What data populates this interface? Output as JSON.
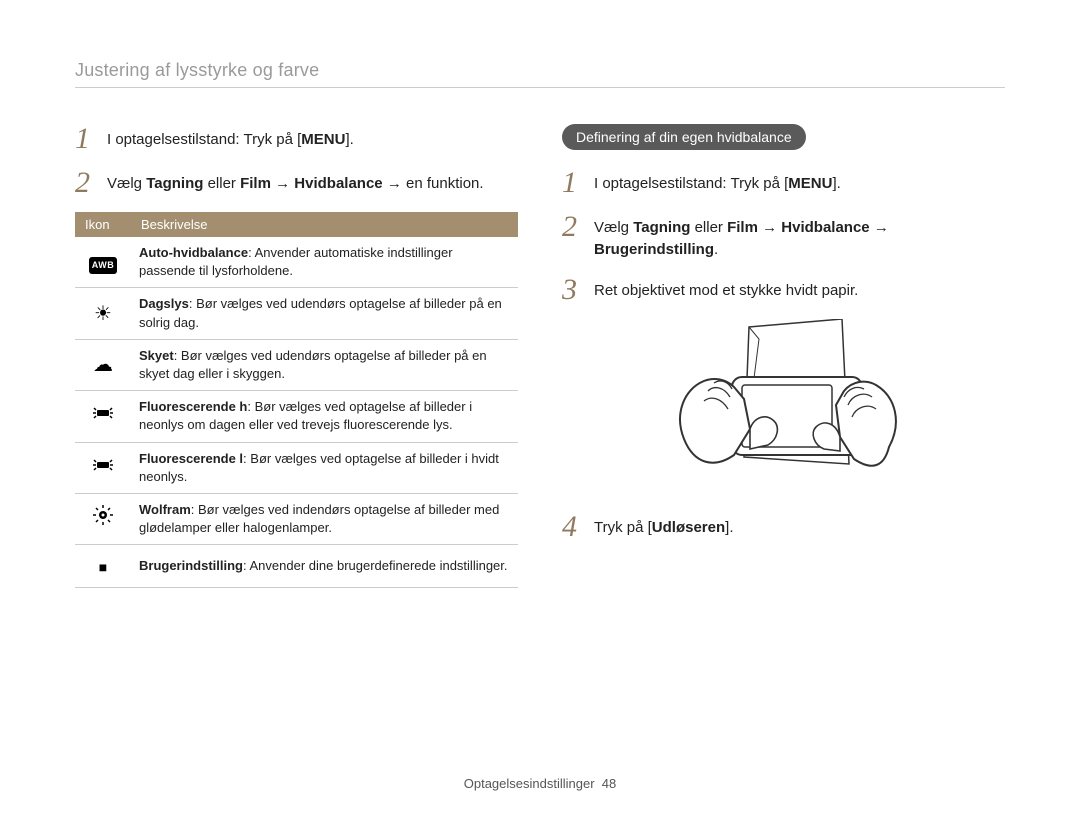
{
  "page": {
    "title": "Justering af lysstyrke og farve",
    "footer_label": "Optagelsesindstillinger",
    "footer_page": "48"
  },
  "colors": {
    "title_gray": "#9a9a9a",
    "step_number": "#8f7a5f",
    "table_header_bg": "#a38e70",
    "table_header_text": "#ffffff",
    "pill_bg": "#5a5a5a",
    "pill_text": "#ffffff",
    "border": "#cccccc",
    "body_text": "#222222",
    "background": "#ffffff"
  },
  "left": {
    "steps": [
      {
        "num": "1",
        "pre": "I optagelsestilstand: Tryk på [",
        "bold": "MENU",
        "post": "]."
      },
      {
        "num": "2",
        "pre": "Vælg ",
        "bold": "Tagning",
        "mid1": " eller ",
        "bold2": "Film",
        "mid2": " → ",
        "bold3": "Hvidbalance",
        "post": " → en funktion."
      }
    ],
    "table": {
      "headers": [
        "Ikon",
        "Beskrivelse"
      ],
      "rows": [
        {
          "icon": "AWB",
          "icon_type": "awb",
          "bold": "Auto-hvidbalance",
          "text": ": Anvender automatiske indstillinger passende til lysforholdene."
        },
        {
          "icon": "☀",
          "icon_type": "glyph",
          "bold": "Dagslys",
          "text": ": Bør vælges ved udendørs optagelse af billeder på en solrig dag."
        },
        {
          "icon": "☁",
          "icon_type": "glyph",
          "bold": "Skyet",
          "text": ": Bør vælges ved udendørs optagelse af billeder på en skyet dag eller i skyggen."
        },
        {
          "icon": "fluoH",
          "icon_type": "svg",
          "bold": "Fluorescerende h",
          "text": ": Bør vælges ved optagelse af billeder i neonlys om dagen eller ved trevejs fluorescerende lys."
        },
        {
          "icon": "fluoL",
          "icon_type": "svg",
          "bold": "Fluorescerende l",
          "text": ": Bør vælges ved optagelse af billeder i hvidt neonlys."
        },
        {
          "icon": "wolf",
          "icon_type": "svg",
          "bold": "Wolfram",
          "text": ": Bør vælges ved indendørs optagelse af billeder med glødelamper eller halogenlamper."
        },
        {
          "icon": "■",
          "icon_type": "glyph_small",
          "bold": "Brugerindstilling",
          "text": ": Anvender dine brugerdefinerede indstillinger."
        }
      ]
    }
  },
  "right": {
    "heading": "Definering af din egen hvidbalance",
    "steps": [
      {
        "num": "1",
        "pre": "I optagelsestilstand: Tryk på [",
        "bold": "MENU",
        "post": "]."
      },
      {
        "num": "2",
        "pre": "Vælg ",
        "bold": "Tagning",
        "mid1": " eller ",
        "bold2": "Film",
        "mid2": " → ",
        "bold3": "Hvidbalance",
        "mid3": " → ",
        "bold4": "Brugerindstilling",
        "post": "."
      },
      {
        "num": "3",
        "plain": "Ret objektivet mod et stykke hvidt papir."
      },
      {
        "num": "4",
        "pre": "Tryk på [",
        "bold": "Udløseren",
        "post": "]."
      }
    ]
  }
}
